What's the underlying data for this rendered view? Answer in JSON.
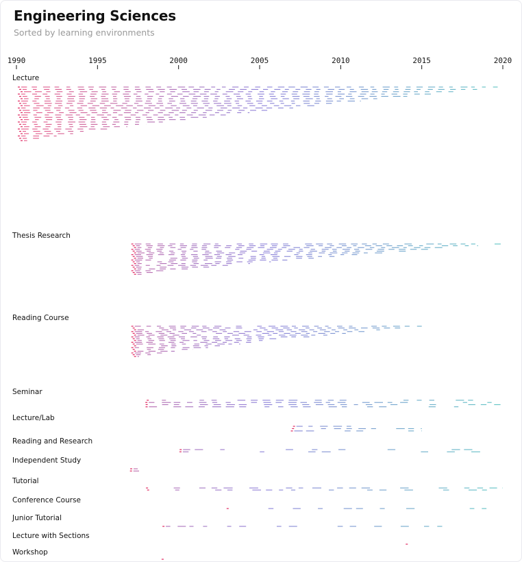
{
  "header": {
    "title": "Engineering Sciences",
    "subtitle": "Sorted by learning environments"
  },
  "chart_data": {
    "type": "timeline",
    "title": "Engineering Sciences",
    "subtitle": "Sorted by learning environments",
    "xlim": [
      1990,
      2020
    ],
    "ticks": [
      1990,
      1995,
      2000,
      2005,
      2010,
      2015,
      2020
    ],
    "tick_labels": [
      "1990",
      "1995",
      "2000",
      "2005",
      "2010",
      "2015",
      "2020"
    ],
    "colors": {
      "early": "#e0245e",
      "mid": "#6a5acd",
      "late": "#2bb3b1",
      "axis": "#111111"
    },
    "groups": [
      {
        "name": "Lecture",
        "start": 1990,
        "end": 2020,
        "rows": 24,
        "density": 1.0
      },
      {
        "name": "Thesis Research",
        "start": 1997,
        "end": 2020,
        "rows": 18,
        "density": 0.9
      },
      {
        "name": "Reading Course",
        "start": 1997,
        "end": 2015,
        "rows": 18,
        "density": 0.85
      },
      {
        "name": "Seminar",
        "start": 1998,
        "end": 2020,
        "rows": 4,
        "density": 0.7
      },
      {
        "name": "Lecture/Lab",
        "start": 2007,
        "end": 2015,
        "rows": 3,
        "density": 0.6
      },
      {
        "name": "Reading and Research",
        "start": 2000,
        "end": 2020,
        "rows": 2,
        "density": 0.3
      },
      {
        "name": "Independent Study",
        "start": 1997,
        "end": 1998,
        "rows": 2,
        "density": 0.5
      },
      {
        "name": "Tutorial",
        "start": 1998,
        "end": 2020,
        "rows": 2,
        "density": 0.6
      },
      {
        "name": "Conference Course",
        "start": 2003,
        "end": 2020,
        "rows": 1,
        "density": 0.5
      },
      {
        "name": "Junior Tutorial",
        "start": 1999,
        "end": 2017,
        "rows": 1,
        "density": 0.5
      },
      {
        "name": "Lecture with Sections",
        "start": 2014,
        "end": 2015,
        "rows": 1,
        "density": 0.3
      },
      {
        "name": "Workshop",
        "start": 1999,
        "end": 1999,
        "rows": 1,
        "density": 0.2
      }
    ]
  }
}
